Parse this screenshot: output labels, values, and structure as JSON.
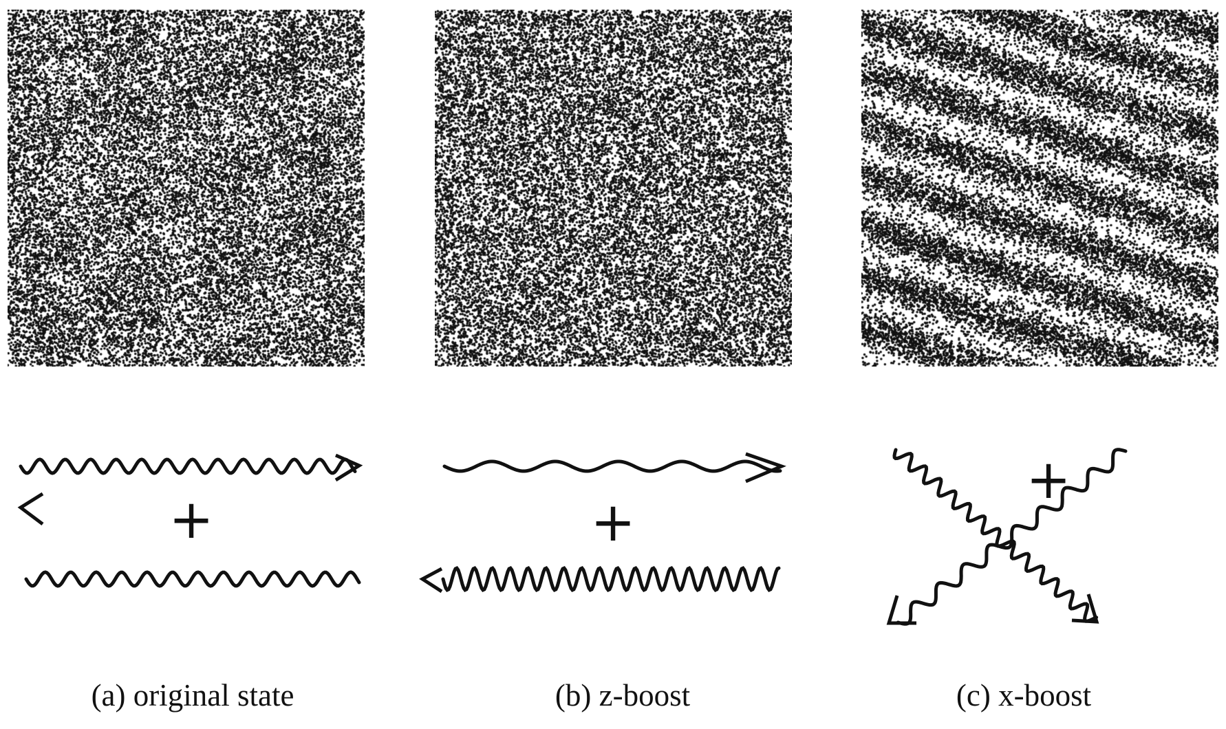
{
  "panels": [
    {
      "id": "a",
      "caption": "(a) original state",
      "pattern": "isotropic-random-points",
      "plus": "+"
    },
    {
      "id": "b",
      "caption": "(b) z-boost",
      "pattern": "random-points-with-fine-cellular-structure",
      "plus": "+"
    },
    {
      "id": "c",
      "caption": "(c) x-boost",
      "pattern": "random-points-with-diagonal-stripes",
      "plus": "+"
    }
  ],
  "colors": {
    "ink": "#111111",
    "background": "#ffffff"
  }
}
